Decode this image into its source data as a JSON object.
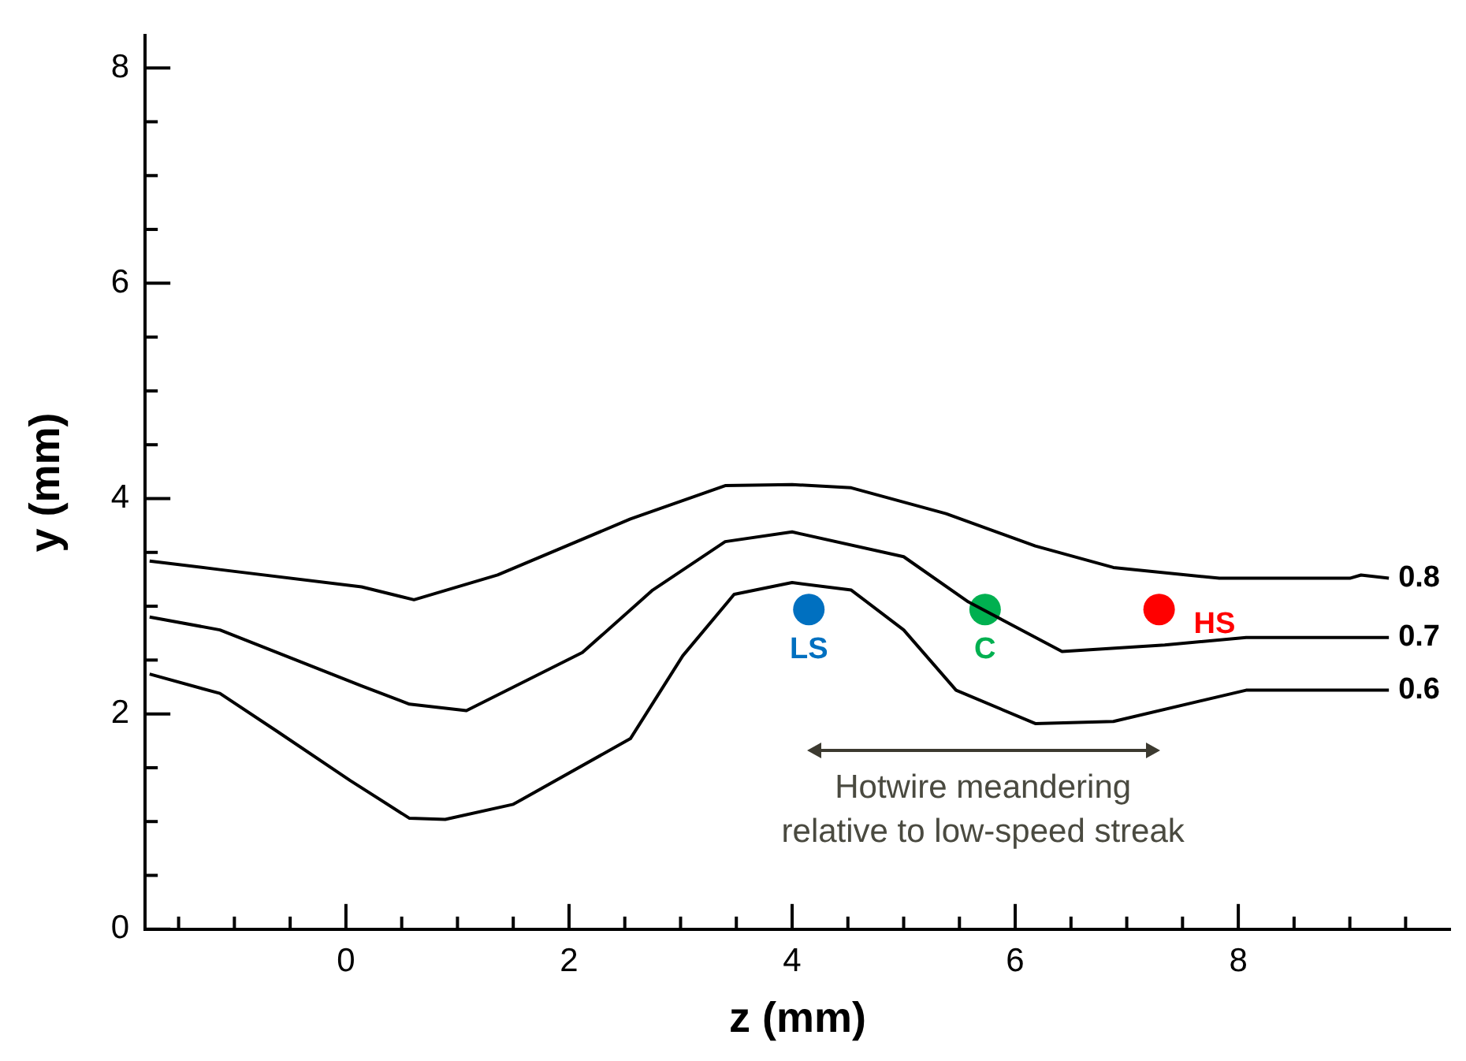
{
  "chart_data": {
    "type": "line",
    "xlabel": "z (mm)",
    "ylabel": "y (mm)",
    "xlim": [
      -1.8,
      9.9
    ],
    "ylim": [
      0,
      8.3
    ],
    "xticks": [
      {
        "value": -1.5,
        "label": null
      },
      {
        "value": -1,
        "label": null
      },
      {
        "value": -0.5,
        "label": null
      },
      0,
      {
        "value": 0.5,
        "label": null
      },
      {
        "value": 1,
        "label": null
      },
      {
        "value": 1.5,
        "label": null
      },
      2,
      {
        "value": 2.5,
        "label": null
      },
      {
        "value": 3,
        "label": null
      },
      {
        "value": 3.5,
        "label": null
      },
      4,
      {
        "value": 4.5,
        "label": null
      },
      {
        "value": 5,
        "label": null
      },
      {
        "value": 5.5,
        "label": null
      },
      6,
      {
        "value": 6.5,
        "label": null
      },
      {
        "value": 7,
        "label": null
      },
      {
        "value": 7.5,
        "label": null
      },
      8,
      {
        "value": 8.5,
        "label": null
      },
      {
        "value": 9,
        "label": null
      },
      {
        "value": 9.5,
        "label": null
      }
    ],
    "yticks": [
      0,
      {
        "value": 0.5,
        "label": null
      },
      {
        "value": 1,
        "label": null
      },
      {
        "value": 1.5,
        "label": null
      },
      2,
      {
        "value": 2.5,
        "label": null
      },
      {
        "value": 3,
        "label": null
      },
      {
        "value": 3.5,
        "label": null
      },
      4,
      {
        "value": 4.5,
        "label": null
      },
      {
        "value": 5,
        "label": null
      },
      {
        "value": 5.5,
        "label": null
      },
      6,
      {
        "value": 6.5,
        "label": null
      },
      {
        "value": 7,
        "label": null
      },
      {
        "value": 7.5,
        "label": null
      },
      8
    ],
    "grid": false,
    "legend": false,
    "series": [
      {
        "name": "0.8",
        "type": "line",
        "color": "#000000",
        "x": [
          -1.76,
          -1.13,
          0.14,
          0.61,
          1.36,
          2.55,
          3.4,
          4.0,
          4.53,
          5.38,
          6.18,
          6.88,
          7.83,
          9.0,
          9.1,
          9.35
        ],
        "values": [
          3.42,
          3.34,
          3.18,
          3.06,
          3.29,
          3.81,
          4.12,
          4.13,
          4.1,
          3.86,
          3.56,
          3.36,
          3.26,
          3.26,
          3.29,
          3.26
        ]
      },
      {
        "name": "0.7",
        "type": "line",
        "color": "#000000",
        "x": [
          -1.76,
          -1.13,
          0.14,
          0.57,
          1.08,
          2.12,
          2.75,
          3.4,
          4.0,
          5.0,
          5.58,
          6.42,
          7.34,
          8.07,
          9.35
        ],
        "values": [
          2.9,
          2.78,
          2.26,
          2.09,
          2.03,
          2.57,
          3.15,
          3.6,
          3.69,
          3.46,
          3.04,
          2.58,
          2.64,
          2.71,
          2.71
        ]
      },
      {
        "name": "0.6",
        "type": "line",
        "color": "#000000",
        "x": [
          -1.76,
          -1.13,
          -0.62,
          0.04,
          0.57,
          0.89,
          1.5,
          2.55,
          3.02,
          3.48,
          4.0,
          4.53,
          5.0,
          5.47,
          6.18,
          6.88,
          8.07,
          9.35
        ],
        "values": [
          2.37,
          2.19,
          1.84,
          1.38,
          1.03,
          1.02,
          1.16,
          1.77,
          2.54,
          3.11,
          3.22,
          3.15,
          2.78,
          2.22,
          1.91,
          1.93,
          2.22,
          2.22
        ]
      },
      {
        "name": "LS",
        "type": "scatter",
        "color": "#0070c0",
        "x": [
          4.15
        ],
        "values": [
          2.97
        ]
      },
      {
        "name": "C",
        "type": "scatter",
        "color": "#00b050",
        "x": [
          5.73
        ],
        "values": [
          2.97
        ]
      },
      {
        "name": "HS",
        "type": "scatter",
        "color": "#ff0000",
        "x": [
          7.29
        ],
        "values": [
          2.97
        ]
      }
    ],
    "annotations": [
      "Hotwire meandering relative to low-speed streak"
    ]
  }
}
